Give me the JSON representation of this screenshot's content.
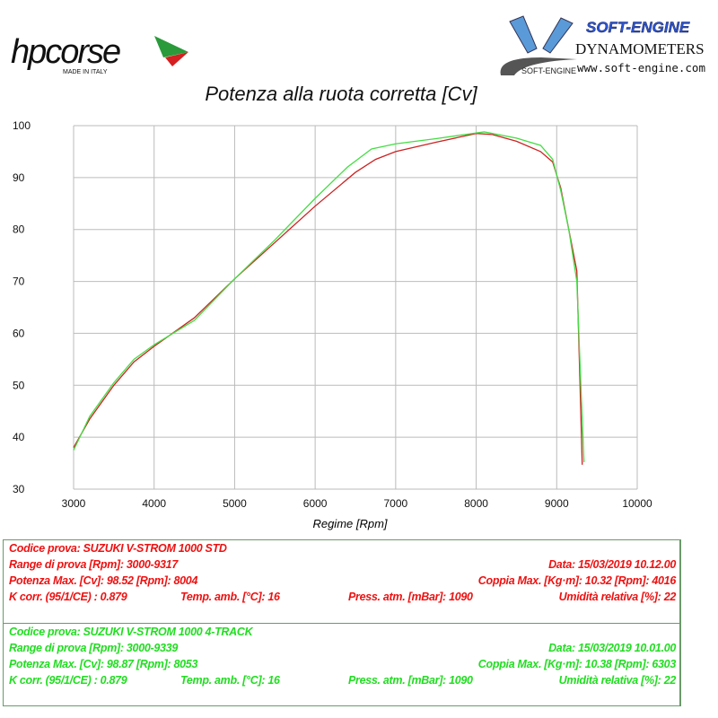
{
  "header": {
    "brand_logo_text": "hpcorse",
    "brand_logo_sub": "MADE IN ITALY",
    "dyno_logo_title": "SOFT-ENGINE",
    "dyno_logo_sub": "DYNAMOMETERS",
    "dyno_logo_url": "www.soft-engine.com",
    "dyno_logo_mark": "SOFT-ENGINE"
  },
  "chart_data": {
    "type": "line",
    "title": "Potenza alla ruota corretta [Cv]",
    "xlabel": "Regime [Rpm]",
    "ylabel": "",
    "xlim": [
      3000,
      10000
    ],
    "ylim": [
      30,
      100
    ],
    "xticks": [
      3000,
      4000,
      5000,
      6000,
      7000,
      8000,
      9000,
      10000
    ],
    "yticks": [
      30,
      40,
      50,
      60,
      70,
      80,
      90,
      100
    ],
    "grid": true,
    "series": [
      {
        "name": "SUZUKI V-STROM 1000 STD",
        "color": "#cc2222",
        "x": [
          3000,
          3200,
          3500,
          3750,
          4000,
          4500,
          5000,
          5500,
          6000,
          6500,
          6750,
          7000,
          7500,
          8000,
          8200,
          8500,
          8800,
          8950,
          9050,
          9150,
          9250,
          9290,
          9317
        ],
        "y": [
          38,
          43.5,
          50,
          54.5,
          57.5,
          63,
          70.5,
          77.5,
          84.5,
          91,
          93.5,
          95,
          96.8,
          98.5,
          98.3,
          97,
          95,
          93,
          88,
          80,
          72,
          50,
          34.7
        ]
      },
      {
        "name": "SUZUKI V-STROM 1000 4-TRACK",
        "color": "#44dd44",
        "x": [
          3000,
          3200,
          3500,
          3750,
          4000,
          4500,
          5000,
          5500,
          6000,
          6400,
          6700,
          7000,
          7500,
          8000,
          8100,
          8500,
          8800,
          8950,
          9050,
          9150,
          9250,
          9300,
          9339
        ],
        "y": [
          37.5,
          44,
          50.5,
          55,
          57.8,
          62.5,
          70.5,
          78,
          86,
          92,
          95.5,
          96.5,
          97.5,
          98.6,
          98.8,
          97.6,
          96.2,
          93.5,
          87.5,
          80,
          70,
          50,
          35.2
        ]
      }
    ]
  },
  "tests": [
    {
      "codice": "Codice prova: SUZUKI V-STROM 1000 STD",
      "range": "Range di prova [Rpm]: 3000-9317",
      "potenza": "Potenza Max. [Cv]: 98.52   [Rpm]: 8004",
      "kcorr": "K corr. (95/1/CE) : 0.879",
      "temp": "Temp. amb. [°C]: 16",
      "press": "Press. atm. [mBar]: 1090",
      "data": "Data: 15/03/2019   10.12.00",
      "coppia": "Coppia Max. [Kg·m]: 10.32   [Rpm]: 4016",
      "umidita": "Umidità relativa [%]: 22"
    },
    {
      "codice": "Codice prova: SUZUKI V-STROM 1000  4-TRACK",
      "range": "Range di prova [Rpm]: 3000-9339",
      "potenza": "Potenza Max. [Cv]: 98.87   [Rpm]: 8053",
      "kcorr": "K corr. (95/1/CE) : 0.879",
      "temp": "Temp. amb. [°C]: 16",
      "press": "Press. atm. [mBar]: 1090",
      "data": "Data: 15/03/2019   10.01.00",
      "coppia": "Coppia Max. [Kg·m]: 10.38   [Rpm]: 6303",
      "umidita": "Umidità relativa [%]: 22"
    }
  ]
}
